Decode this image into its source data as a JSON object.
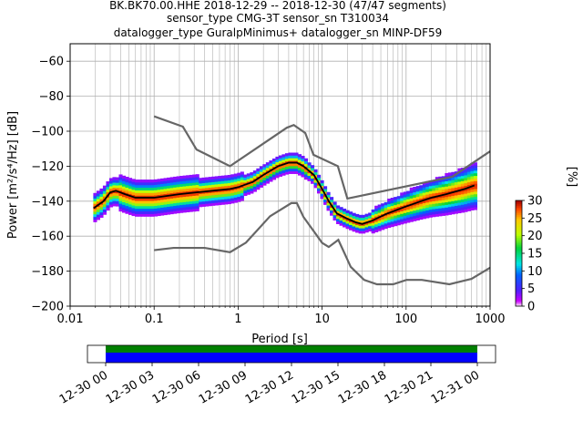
{
  "chart_data": {
    "type": "heatmap",
    "title_lines": [
      "BK.BK70.00.HHE   2018-12-29 -- 2018-12-30  (47/47 segments)",
      "sensor_type CMG-3T sensor_sn T310034",
      "datalogger_type GuralpMinimus+ datalogger_sn MINP-DF59"
    ],
    "xlabel": "Period [s]",
    "ylabel": "Power [m²/s⁴/Hz] [dB]",
    "x_scale": "log",
    "xlim": [
      0.01,
      1000
    ],
    "ylim": [
      -200,
      -50
    ],
    "x_ticks": [
      {
        "value": 0.01,
        "label": "0.01"
      },
      {
        "value": 0.1,
        "label": "0.1"
      },
      {
        "value": 1,
        "label": "1"
      },
      {
        "value": 10,
        "label": "10"
      },
      {
        "value": 100,
        "label": "100"
      },
      {
        "value": 1000,
        "label": "1000"
      }
    ],
    "y_ticks": [
      -60,
      -80,
      -100,
      -120,
      -140,
      -160,
      -180,
      -200
    ],
    "grid": true,
    "noise_models": {
      "high": [
        [
          0.1,
          -91.5
        ],
        [
          0.22,
          -97.4
        ],
        [
          0.32,
          -110.5
        ],
        [
          0.8,
          -120
        ],
        [
          3.8,
          -98
        ],
        [
          4.6,
          -96.5
        ],
        [
          6.3,
          -101
        ],
        [
          7.9,
          -113.5
        ],
        [
          15.4,
          -120
        ],
        [
          20,
          -138.5
        ],
        [
          354.8,
          -126
        ],
        [
          1000,
          -111.5
        ]
      ],
      "low": [
        [
          0.1,
          -168
        ],
        [
          0.17,
          -166.7
        ],
        [
          0.4,
          -166.7
        ],
        [
          0.8,
          -169.2
        ],
        [
          1.24,
          -163.7
        ],
        [
          2.4,
          -148.6
        ],
        [
          4.3,
          -141.1
        ],
        [
          5,
          -141.1
        ],
        [
          6,
          -149
        ],
        [
          10,
          -163.8
        ],
        [
          12,
          -166.2
        ],
        [
          15.6,
          -162.1
        ],
        [
          21.9,
          -177.5
        ],
        [
          31.6,
          -185
        ],
        [
          45,
          -187.5
        ],
        [
          70,
          -187.5
        ],
        [
          101,
          -185
        ],
        [
          154,
          -185
        ],
        [
          328,
          -187.5
        ],
        [
          600,
          -184.4
        ],
        [
          1000,
          -178
        ]
      ]
    },
    "mode_line": [
      [
        0.019,
        -144
      ],
      [
        0.025,
        -140
      ],
      [
        0.03,
        -135
      ],
      [
        0.035,
        -134
      ],
      [
        0.045,
        -136
      ],
      [
        0.06,
        -138
      ],
      [
        0.1,
        -138
      ],
      [
        0.2,
        -136
      ],
      [
        0.5,
        -134
      ],
      [
        0.8,
        -133
      ],
      [
        1,
        -132
      ],
      [
        1.5,
        -129
      ],
      [
        2,
        -125
      ],
      [
        3,
        -120
      ],
      [
        4,
        -118
      ],
      [
        5,
        -118
      ],
      [
        6,
        -120
      ],
      [
        8,
        -125
      ],
      [
        10,
        -133
      ],
      [
        12,
        -140
      ],
      [
        15,
        -147
      ],
      [
        20,
        -150
      ],
      [
        25,
        -152
      ],
      [
        30,
        -153
      ],
      [
        40,
        -151
      ],
      [
        60,
        -147
      ],
      [
        100,
        -143
      ],
      [
        150,
        -140
      ],
      [
        200,
        -138
      ],
      [
        300,
        -136
      ],
      [
        500,
        -133
      ],
      [
        650,
        -131
      ]
    ],
    "colorbar": {
      "label": "[%]",
      "min": 0,
      "max": 30,
      "ticks": [
        0,
        5,
        10,
        15,
        20,
        25,
        30
      ]
    },
    "time_coverage": {
      "tick_labels": [
        "12-30 00",
        "12-30 03",
        "12-30 06",
        "12-30 09",
        "12-30 12",
        "12-30 15",
        "12-30 18",
        "12-30 21",
        "12-31 00"
      ],
      "coverage_color_top": "#008000",
      "coverage_color_bottom": "#0000ff"
    }
  }
}
